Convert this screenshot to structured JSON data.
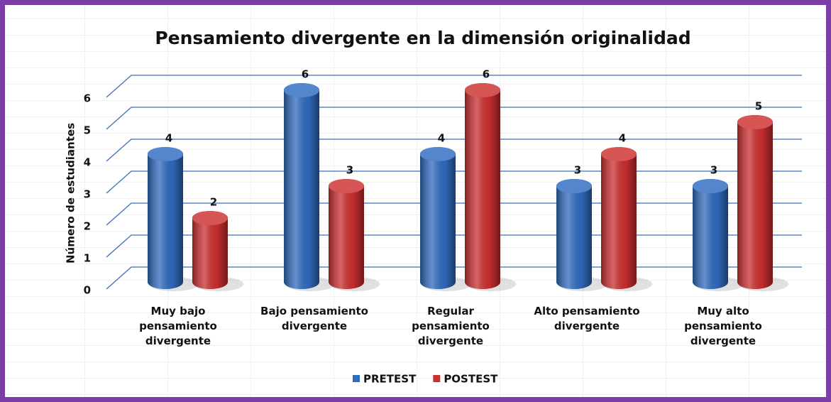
{
  "chart_data": {
    "type": "bar",
    "title": "Pensamiento divergente en la dimensión originalidad",
    "y_label": "Número de estudiantes",
    "categories": [
      "Muy bajo pensamiento divergente",
      "Bajo pensamiento divergente",
      "Regular pensamiento divergente",
      "Alto pensamiento divergente",
      "Muy alto pensamiento divergente"
    ],
    "series": [
      {
        "name": "PRETEST",
        "color": "#2f6cc0",
        "values": [
          4,
          6,
          4,
          3,
          3
        ]
      },
      {
        "name": "POSTEST",
        "color": "#cc2f2f",
        "values": [
          2,
          3,
          6,
          4,
          5
        ]
      }
    ],
    "ylim": [
      0,
      6
    ],
    "yticks": [
      0,
      1,
      2,
      3,
      4,
      5,
      6
    ],
    "grid": true,
    "legend": "bottom"
  }
}
